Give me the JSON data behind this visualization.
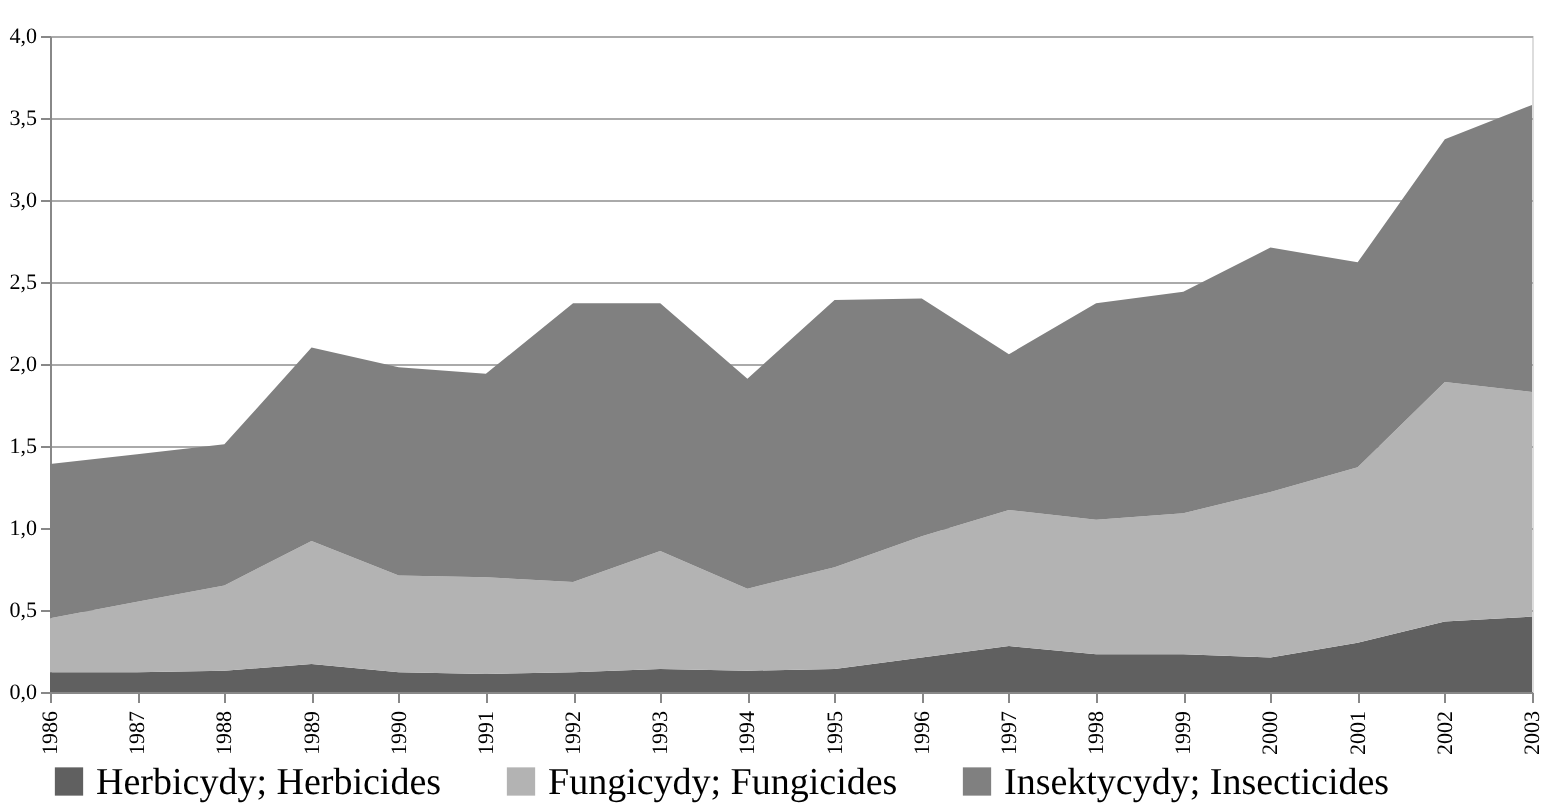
{
  "chart_data": {
    "type": "area",
    "stacked": true,
    "categories": [
      "1986",
      "1987",
      "1988",
      "1989",
      "1990",
      "1991",
      "1992",
      "1993",
      "1994",
      "1995",
      "1996",
      "1997",
      "1998",
      "1999",
      "2000",
      "2001",
      "2002",
      "2003"
    ],
    "series": [
      {
        "name": "Herbicydy; Herbicides",
        "color": "#606060",
        "values": [
          0.12,
          0.12,
          0.13,
          0.17,
          0.12,
          0.11,
          0.12,
          0.14,
          0.13,
          0.14,
          0.21,
          0.28,
          0.23,
          0.23,
          0.21,
          0.3,
          0.43,
          0.46
        ]
      },
      {
        "name": "Fungicydy; Fungicides",
        "color": "#b3b3b3",
        "values": [
          0.33,
          0.43,
          0.52,
          0.75,
          0.59,
          0.59,
          0.55,
          0.72,
          0.5,
          0.62,
          0.74,
          0.83,
          0.82,
          0.86,
          1.01,
          1.07,
          1.46,
          1.37
        ]
      },
      {
        "name": "Insektycydy; Insecticides",
        "color": "#808080",
        "values": [
          0.94,
          0.9,
          0.86,
          1.18,
          1.27,
          1.24,
          1.7,
          1.51,
          1.28,
          1.63,
          1.45,
          0.95,
          1.32,
          1.35,
          1.49,
          1.25,
          1.48,
          1.75
        ]
      }
    ],
    "ylim": [
      0,
      4
    ],
    "yticks": [
      {
        "value": 0,
        "label": "0,0"
      },
      {
        "value": 0.5,
        "label": "0,5"
      },
      {
        "value": 1,
        "label": "1,0"
      },
      {
        "value": 1.5,
        "label": "1,5"
      },
      {
        "value": 2,
        "label": "2,0"
      },
      {
        "value": 2.5,
        "label": "2,5"
      },
      {
        "value": 3,
        "label": "3,0"
      },
      {
        "value": 3.5,
        "label": "3,5"
      },
      {
        "value": 4,
        "label": "4,0"
      }
    ],
    "grid": "y",
    "legend": "bottom"
  }
}
